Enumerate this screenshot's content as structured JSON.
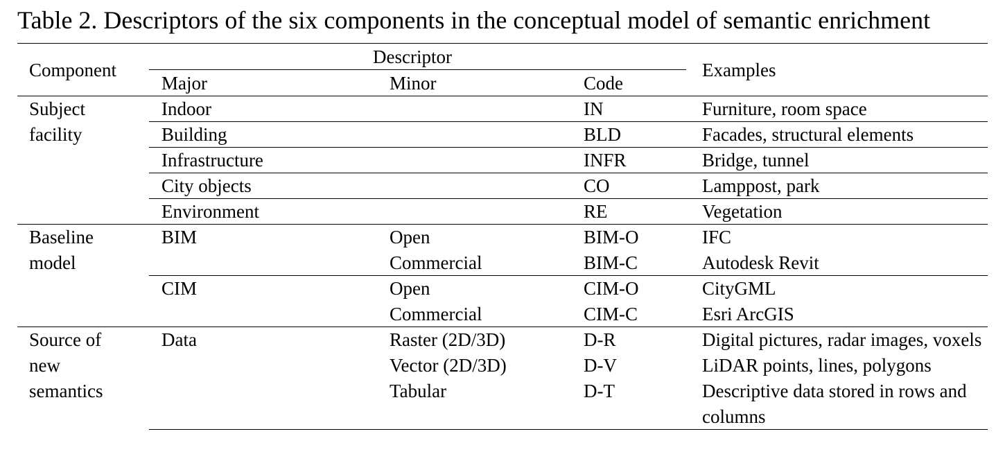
{
  "title": "Table 2. Descriptors of the six components in the conceptual model of semantic enrichment",
  "header": {
    "component": "Component",
    "descriptor": "Descriptor",
    "major": "Major",
    "minor": "Minor",
    "code": "Code",
    "examples": "Examples"
  },
  "sections": [
    {
      "component": "Subject facility",
      "groups": [
        {
          "major": "Indoor",
          "items": [
            {
              "code": "IN",
              "examples": "Furniture, room space"
            }
          ]
        },
        {
          "major": "Building",
          "items": [
            {
              "code": "BLD",
              "examples": "Facades, structural elements"
            }
          ]
        },
        {
          "major": "Infrastructure",
          "items": [
            {
              "code": "INFR",
              "examples": "Bridge, tunnel"
            }
          ]
        },
        {
          "major": "City objects",
          "items": [
            {
              "code": "CO",
              "examples": "Lamppost, park"
            }
          ]
        },
        {
          "major": "Environment",
          "items": [
            {
              "code": "RE",
              "examples": "Vegetation"
            }
          ]
        }
      ]
    },
    {
      "component": "Baseline model",
      "groups": [
        {
          "major": "BIM",
          "items": [
            {
              "minor": "Open",
              "code": "BIM-O",
              "examples": "IFC"
            },
            {
              "minor": "Commercial",
              "code": "BIM-C",
              "examples": "Autodesk Revit"
            }
          ]
        },
        {
          "major": "CIM",
          "items": [
            {
              "minor": "Open",
              "code": "CIM-O",
              "examples": "CityGML"
            },
            {
              "minor": "Commercial",
              "code": "CIM-C",
              "examples": "Esri ArcGIS"
            }
          ]
        }
      ]
    },
    {
      "component": "Source of new semantics",
      "groups": [
        {
          "major": "Data",
          "items": [
            {
              "minor": "Raster (2D/3D)",
              "code": "D-R",
              "examples": "Digital pictures, radar images, voxels"
            },
            {
              "minor": "Vector (2D/3D)",
              "code": "D-V",
              "examples": "LiDAR points, lines, polygons"
            },
            {
              "minor": "Tabular",
              "code": "D-T",
              "examples": "Descriptive data stored in rows and columns"
            }
          ]
        }
      ]
    }
  ]
}
